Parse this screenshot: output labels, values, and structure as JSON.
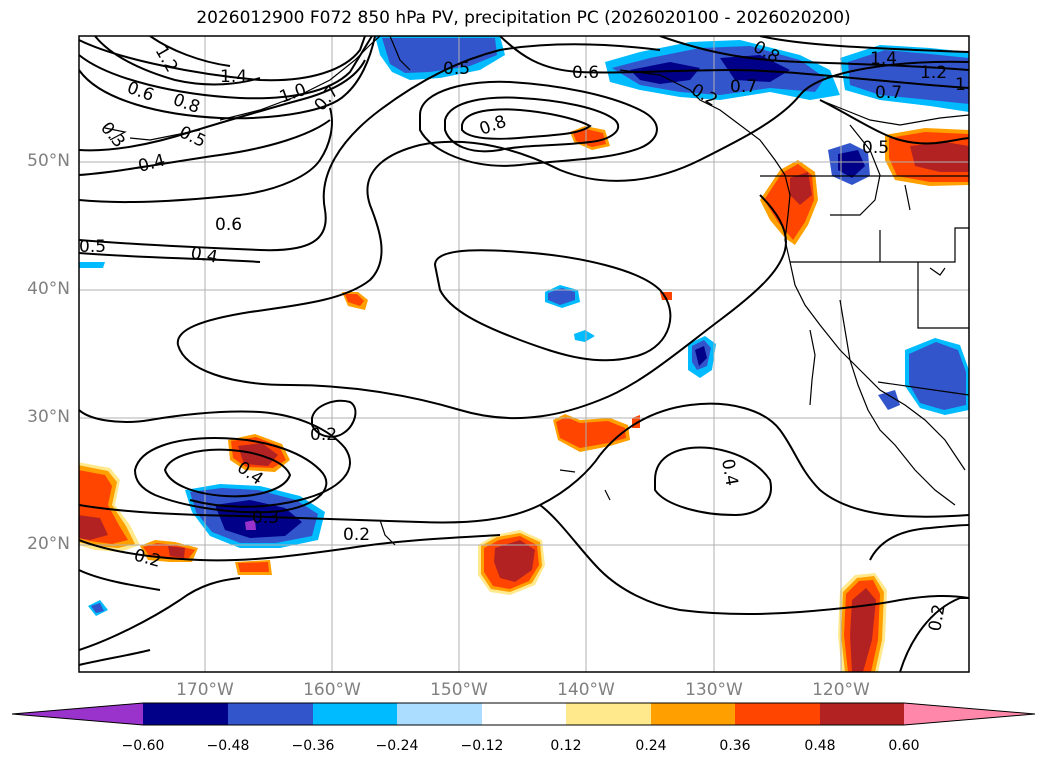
{
  "title": "2026012900 F072 850 hPa PV, precipitation PC (2026020100 - 2026020200)",
  "map": {
    "lat_labels": [
      "50°N",
      "40°N",
      "30°N",
      "20°N"
    ],
    "lon_labels": [
      "170°W",
      "160°W",
      "150°W",
      "140°W",
      "130°W",
      "120°W"
    ],
    "contour_labels": [
      "1.4",
      "1.2",
      "1.0",
      "0.8",
      "0.8",
      "0.8",
      "0.7",
      "0.7",
      "0.7",
      "0.6",
      "0.6",
      "0.6",
      "0.5",
      "0.5",
      "0.5",
      "0.5",
      "0.4",
      "0.4",
      "0.4",
      "0.4",
      "0.3",
      "0.3",
      "0.2",
      "0.2",
      "0.2",
      "0.2",
      "0.2",
      "1.4",
      "1.2",
      "1"
    ]
  },
  "colorbar": {
    "ticks": [
      "−0.60",
      "−0.48",
      "−0.36",
      "−0.24",
      "−0.12",
      "0.12",
      "0.24",
      "0.36",
      "0.48",
      "0.60"
    ],
    "colors": [
      "#9933cc",
      "#000088",
      "#3355cc",
      "#00bbff",
      "#aaddff",
      "#ffffff",
      "#ffe98c",
      "#ffa000",
      "#ff4500",
      "#b22222",
      "#ff88aa"
    ]
  }
}
